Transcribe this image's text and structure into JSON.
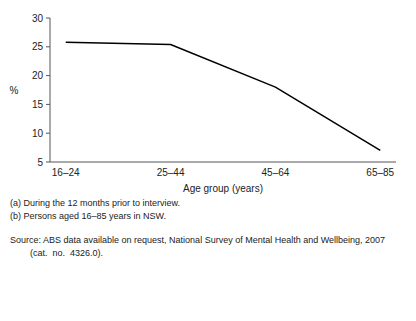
{
  "chart_data": {
    "type": "line",
    "categories": [
      "16–24",
      "25–44",
      "45–64",
      "65–85"
    ],
    "values": [
      25.8,
      25.4,
      18.0,
      7.0
    ],
    "color": "#000000",
    "xlabel": "Age group (years)",
    "ylabel": "%",
    "ylim": [
      5,
      30
    ],
    "yticks": [
      5,
      10,
      15,
      20,
      25,
      30
    ],
    "grid": false,
    "annotations": [
      "(a) During the 12 months prior to interview.",
      "(b) Persons aged 16–85 years in NSW.",
      "Source: ABS data available on request, National Survey of Mental Health and Wellbeing, 2007",
      "        (cat.  no.  4326.0)."
    ]
  }
}
